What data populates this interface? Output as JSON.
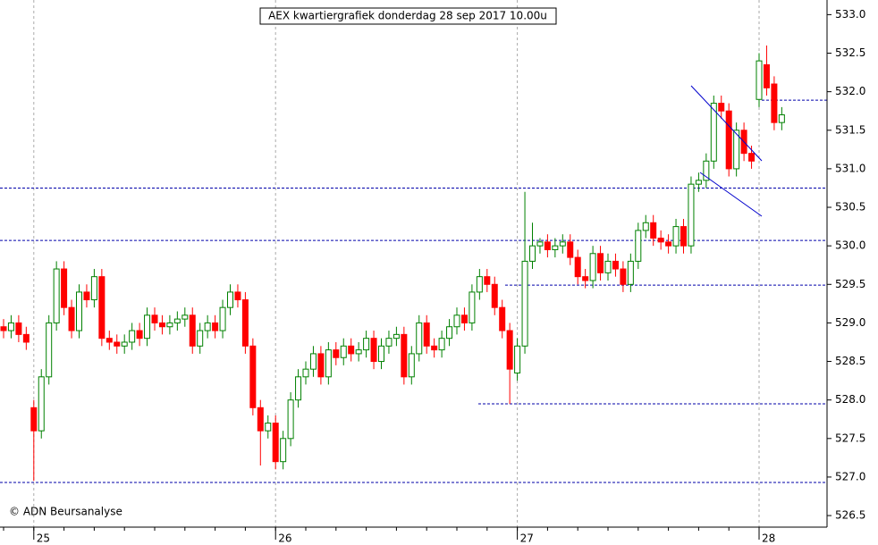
{
  "chart_data": {
    "type": "candlestick",
    "title": "AEX kwartiergrafiek donderdag 28 sep 2017 10.00u",
    "credit": "© ADN Beursanalyse",
    "up_color": "#008000",
    "down_color": "#ff0000",
    "level_color": "#0000aa",
    "ylim": [
      526.35,
      533.19
    ],
    "yticks": [
      526.5,
      {
        "value": 527,
        "label": "527.0"
      },
      527.5,
      {
        "value": 528,
        "label": "528.0"
      },
      528.5,
      {
        "value": 529,
        "label": "529.0"
      },
      529.5,
      {
        "value": 530,
        "label": "530.0"
      },
      530.5,
      {
        "value": 531,
        "label": "531.0"
      },
      531.5,
      {
        "value": 532,
        "label": "532.0"
      },
      532.5,
      {
        "value": 533,
        "label": "533.0"
      }
    ],
    "levels": [
      530.75,
      530.07,
      529.49,
      527.95,
      526.93,
      531.89
    ],
    "categories": [
      null,
      null,
      null,
      null,
      "25",
      null,
      null,
      null,
      null,
      null,
      null,
      null,
      null,
      null,
      null,
      null,
      null,
      null,
      null,
      null,
      null,
      null,
      null,
      null,
      null,
      null,
      null,
      null,
      null,
      null,
      null,
      null,
      null,
      null,
      null,
      null,
      "26",
      null,
      null,
      null,
      null,
      null,
      null,
      null,
      null,
      null,
      null,
      null,
      null,
      null,
      null,
      null,
      null,
      null,
      null,
      null,
      null,
      null,
      null,
      null,
      null,
      null,
      null,
      null,
      null,
      null,
      null,
      null,
      "27",
      null,
      null,
      null,
      null,
      null,
      null,
      null,
      null,
      null,
      null,
      null,
      null,
      null,
      null,
      null,
      null,
      null,
      null,
      null,
      null,
      null,
      null,
      null,
      null,
      null,
      null,
      null,
      null,
      null,
      null,
      null,
      "28",
      null,
      null,
      null
    ],
    "open": [
      528.95,
      528.9,
      529.0,
      528.85,
      527.9,
      527.6,
      528.3,
      529.0,
      529.7,
      529.2,
      528.9,
      529.4,
      529.3,
      529.6,
      528.8,
      528.75,
      528.7,
      528.75,
      528.9,
      528.8,
      529.1,
      529.0,
      528.95,
      529.0,
      529.05,
      529.1,
      528.7,
      528.9,
      529.0,
      528.9,
      529.2,
      529.4,
      529.3,
      528.7,
      527.9,
      527.6,
      527.7,
      527.2,
      527.5,
      528.0,
      528.3,
      528.4,
      528.6,
      528.3,
      528.65,
      528.55,
      528.7,
      528.6,
      528.65,
      528.8,
      528.5,
      528.7,
      528.8,
      528.85,
      528.3,
      528.6,
      529.0,
      528.7,
      528.65,
      528.8,
      528.95,
      529.1,
      529.0,
      529.4,
      529.6,
      529.5,
      529.2,
      528.9,
      528.35,
      528.7,
      529.8,
      530.0,
      530.05,
      529.95,
      530.0,
      530.05,
      529.85,
      529.6,
      529.55,
      529.9,
      529.65,
      529.8,
      529.7,
      529.5,
      529.8,
      530.2,
      530.3,
      530.1,
      530.05,
      530.0,
      530.25,
      530.0,
      530.8,
      530.85,
      531.1,
      531.85,
      531.75,
      531.0,
      531.5,
      531.2,
      531.9,
      532.35,
      532.1,
      531.6
    ],
    "high": [
      529.05,
      529.1,
      529.1,
      528.95,
      528.0,
      528.4,
      529.1,
      529.8,
      529.8,
      529.3,
      529.5,
      529.5,
      529.7,
      529.7,
      528.9,
      528.85,
      528.85,
      529.0,
      529.0,
      529.2,
      529.2,
      529.1,
      529.1,
      529.15,
      529.2,
      529.2,
      529.0,
      529.1,
      529.1,
      529.3,
      529.5,
      529.5,
      529.4,
      528.8,
      528.0,
      527.8,
      527.8,
      527.6,
      528.1,
      528.4,
      528.5,
      528.7,
      528.7,
      528.75,
      528.75,
      528.8,
      528.8,
      528.75,
      528.9,
      528.9,
      528.8,
      528.9,
      528.95,
      528.95,
      528.7,
      529.1,
      529.1,
      528.8,
      528.9,
      529.05,
      529.2,
      529.2,
      529.5,
      529.7,
      529.7,
      529.6,
      529.3,
      529.0,
      528.8,
      530.7,
      530.3,
      530.1,
      530.15,
      530.1,
      530.15,
      530.15,
      529.95,
      529.7,
      530.0,
      530.0,
      529.9,
      529.9,
      529.8,
      529.9,
      530.3,
      530.4,
      530.4,
      530.2,
      530.15,
      530.35,
      530.35,
      530.9,
      530.95,
      531.2,
      531.95,
      531.95,
      531.85,
      531.6,
      531.6,
      531.3,
      532.5,
      532.6,
      532.2,
      531.8
    ],
    "low": [
      528.8,
      528.8,
      528.75,
      528.65,
      526.95,
      527.5,
      528.2,
      528.9,
      529.1,
      528.8,
      528.8,
      529.2,
      529.2,
      528.7,
      528.65,
      528.6,
      528.6,
      528.65,
      528.7,
      528.7,
      528.9,
      528.85,
      528.85,
      528.9,
      528.95,
      528.6,
      528.6,
      528.8,
      528.8,
      528.8,
      529.1,
      529.2,
      528.6,
      527.8,
      527.15,
      527.5,
      527.1,
      527.1,
      527.4,
      527.9,
      528.2,
      528.3,
      528.2,
      528.2,
      528.45,
      528.45,
      528.5,
      528.5,
      528.55,
      528.4,
      528.4,
      528.6,
      528.7,
      528.2,
      528.2,
      528.5,
      528.6,
      528.55,
      528.55,
      528.7,
      528.85,
      528.9,
      528.9,
      529.3,
      529.4,
      529.1,
      528.8,
      527.95,
      528.25,
      528.6,
      529.7,
      529.9,
      529.85,
      529.85,
      529.9,
      529.75,
      529.5,
      529.45,
      529.45,
      529.55,
      529.55,
      529.6,
      529.4,
      529.4,
      529.7,
      530.1,
      530.0,
      529.95,
      529.9,
      529.9,
      529.9,
      529.9,
      530.7,
      530.75,
      531.0,
      531.65,
      530.9,
      530.9,
      531.1,
      531.0,
      531.8,
      531.95,
      531.5,
      531.5
    ],
    "close": [
      528.9,
      529.0,
      528.85,
      528.75,
      527.6,
      528.3,
      529.0,
      529.7,
      529.2,
      528.9,
      529.4,
      529.3,
      529.6,
      528.8,
      528.75,
      528.7,
      528.75,
      528.9,
      528.8,
      529.1,
      529.0,
      528.95,
      529.0,
      529.05,
      529.1,
      528.7,
      528.9,
      529.0,
      528.9,
      529.2,
      529.4,
      529.3,
      528.7,
      527.9,
      527.6,
      527.7,
      527.2,
      527.5,
      528.0,
      528.3,
      528.4,
      528.6,
      528.3,
      528.65,
      528.55,
      528.7,
      528.6,
      528.65,
      528.8,
      528.5,
      528.7,
      528.8,
      528.85,
      528.3,
      528.6,
      529.0,
      528.7,
      528.65,
      528.8,
      528.95,
      529.1,
      529.0,
      529.4,
      529.6,
      529.5,
      529.2,
      528.9,
      528.4,
      528.7,
      529.8,
      530.0,
      530.05,
      529.95,
      530.0,
      530.05,
      529.85,
      529.6,
      529.55,
      529.9,
      529.65,
      529.8,
      529.7,
      529.5,
      529.8,
      530.2,
      530.3,
      530.1,
      530.05,
      530.0,
      530.25,
      530.0,
      530.8,
      530.85,
      531.1,
      531.85,
      531.75,
      531.0,
      531.5,
      531.2,
      531.1,
      532.4,
      532.05,
      531.6,
      531.7
    ]
  }
}
